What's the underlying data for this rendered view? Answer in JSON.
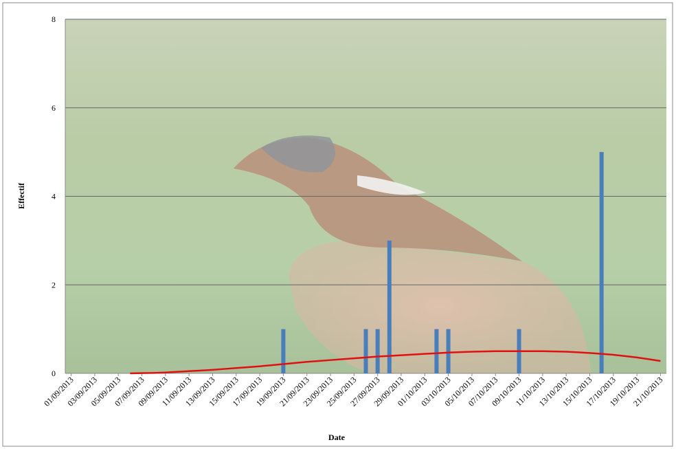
{
  "chart_data": {
    "type": "bar",
    "y_label": "Effectif",
    "x_label": "Date",
    "categories": [
      "01/09/2013",
      null,
      "03/09/2013",
      null,
      "05/09/2013",
      null,
      "07/09/2013",
      null,
      "09/09/2013",
      null,
      "11/09/2013",
      null,
      "13/09/2013",
      null,
      "15/09/2013",
      null,
      "17/09/2013",
      null,
      "19/09/2013",
      null,
      "21/09/2013",
      null,
      "23/09/2013",
      null,
      "25/09/2013",
      null,
      "27/09/2013",
      null,
      "29/09/2013",
      null,
      "01/10/2013",
      null,
      "03/10/2013",
      null,
      "05/10/2013",
      null,
      "07/10/2013",
      null,
      "09/10/2013",
      null,
      "11/10/2013",
      null,
      "13/10/2013",
      null,
      "15/10/2013",
      null,
      "17/10/2013",
      null,
      "19/10/2013",
      null,
      "21/10/2013"
    ],
    "series": [
      {
        "type": "bar",
        "color": "#4a7ebb",
        "values": [
          null,
          null,
          null,
          null,
          null,
          null,
          null,
          null,
          null,
          null,
          null,
          null,
          null,
          null,
          null,
          null,
          null,
          null,
          1,
          null,
          null,
          null,
          null,
          null,
          null,
          1,
          1,
          3,
          null,
          null,
          null,
          1,
          1,
          null,
          null,
          null,
          null,
          null,
          1,
          null,
          null,
          null,
          null,
          null,
          null,
          5,
          null,
          null,
          null,
          null,
          null
        ]
      },
      {
        "type": "line",
        "color": "#e01010",
        "values": [
          null,
          null,
          null,
          null,
          null,
          0,
          0.005,
          0.01,
          0.02,
          0.035,
          0.05,
          0.065,
          0.08,
          0.1,
          0.12,
          0.14,
          0.16,
          0.185,
          0.21,
          0.235,
          0.26,
          0.28,
          0.3,
          0.32,
          0.34,
          0.36,
          0.38,
          0.395,
          0.41,
          0.425,
          0.44,
          0.455,
          0.47,
          0.48,
          0.49,
          0.495,
          0.5,
          0.5,
          0.5,
          0.5,
          0.5,
          0.495,
          0.49,
          0.475,
          0.46,
          0.44,
          0.42,
          0.39,
          0.36,
          0.32,
          0.28
        ]
      }
    ],
    "ylim": [
      0,
      8
    ],
    "yticks": [
      0,
      2,
      4,
      6,
      8
    ],
    "grid": true
  }
}
